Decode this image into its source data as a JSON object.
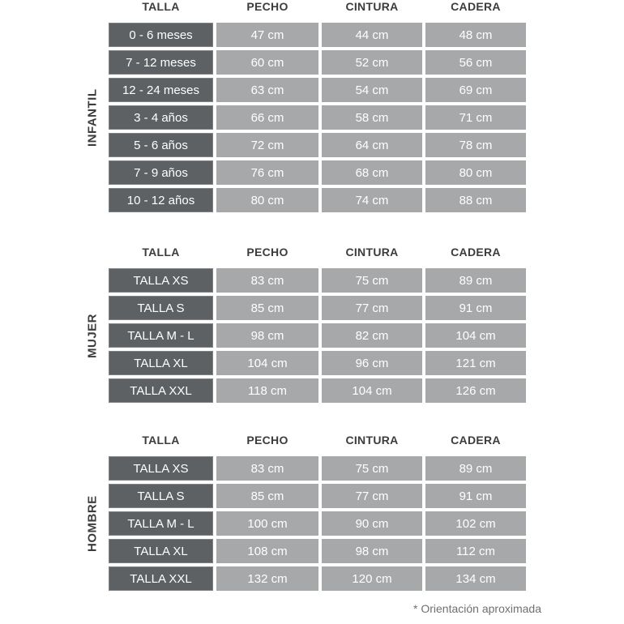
{
  "chart_data": {
    "type": "table",
    "columns": [
      "TALLA",
      "PECHO",
      "CINTURA",
      "CADERA"
    ],
    "sections": [
      {
        "label": "INFANTIL",
        "rows": [
          [
            "0 - 6 meses",
            "47 cm",
            "44 cm",
            "48 cm"
          ],
          [
            "7 - 12 meses",
            "60 cm",
            "52 cm",
            "56 cm"
          ],
          [
            "12 - 24 meses",
            "63 cm",
            "54 cm",
            "69 cm"
          ],
          [
            "3 - 4 años",
            "66 cm",
            "58 cm",
            "71 cm"
          ],
          [
            "5 - 6 años",
            "72 cm",
            "64 cm",
            "78 cm"
          ],
          [
            "7 - 9 años",
            "76 cm",
            "68 cm",
            "80 cm"
          ],
          [
            "10 - 12 años",
            "80 cm",
            "74 cm",
            "88 cm"
          ]
        ]
      },
      {
        "label": "MUJER",
        "rows": [
          [
            "TALLA XS",
            "83 cm",
            "75 cm",
            "89 cm"
          ],
          [
            "TALLA S",
            "85 cm",
            "77 cm",
            "91 cm"
          ],
          [
            "TALLA M - L",
            "98 cm",
            "82 cm",
            "104 cm"
          ],
          [
            "TALLA XL",
            "104 cm",
            "96 cm",
            "121 cm"
          ],
          [
            "TALLA XXL",
            "118 cm",
            "104 cm",
            "126 cm"
          ]
        ]
      },
      {
        "label": "HOMBRE",
        "rows": [
          [
            "TALLA XS",
            "83 cm",
            "75 cm",
            "89 cm"
          ],
          [
            "TALLA S",
            "85 cm",
            "77 cm",
            "91 cm"
          ],
          [
            "TALLA M - L",
            "100 cm",
            "90 cm",
            "102 cm"
          ],
          [
            "TALLA XL",
            "108 cm",
            "98 cm",
            "112 cm"
          ],
          [
            "TALLA XXL",
            "132 cm",
            "120 cm",
            "134 cm"
          ]
        ]
      }
    ],
    "footnote": "* Orientación aproximada",
    "layout": {
      "legend_position": "none",
      "grid": "off"
    }
  },
  "colors": {
    "background": "#ffffff",
    "dark_cell": "#5d6164",
    "light_cell": "#a7a8aa",
    "header_text": "#3b3c3e",
    "cell_text": "#ffffff",
    "footnote_text": "#707070"
  }
}
